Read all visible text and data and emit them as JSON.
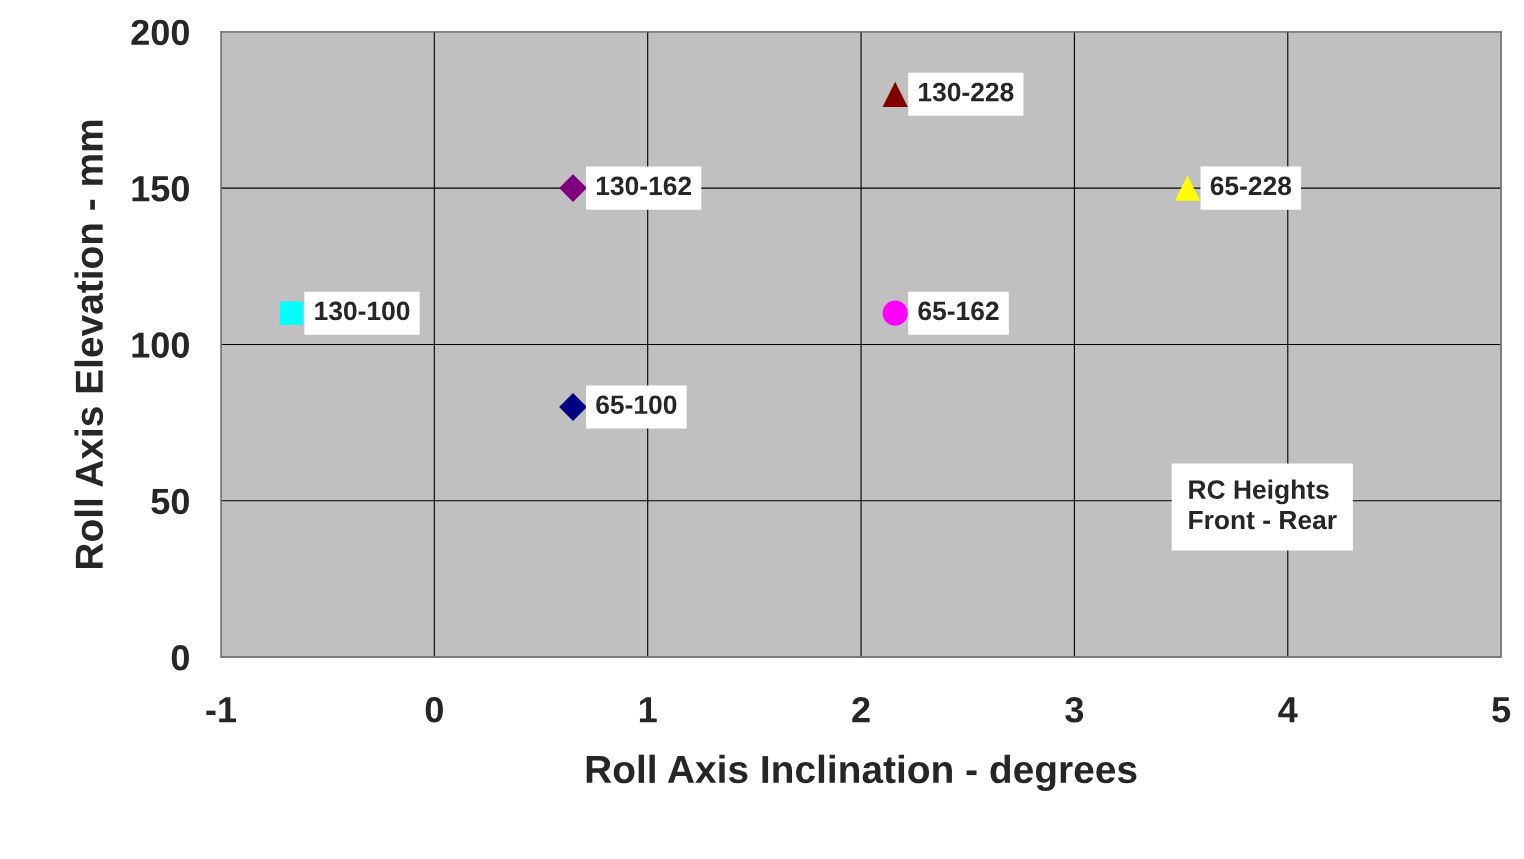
{
  "chart_data": {
    "type": "scatter",
    "xlabel": "Roll Axis Inclination - degrees",
    "ylabel": "Roll Axis Elevation - mm",
    "series": [
      {
        "name": "130-100",
        "color": "#00ffff",
        "marker": "square",
        "x": [
          -0.67
        ],
        "values": [
          110
        ]
      },
      {
        "name": "130-162",
        "color": "#800080",
        "marker": "diamond",
        "x": [
          0.65
        ],
        "values": [
          150
        ]
      },
      {
        "name": "65-100",
        "color": "#000080",
        "marker": "diamond",
        "x": [
          0.65
        ],
        "values": [
          80
        ]
      },
      {
        "name": "130-228",
        "color": "#800000",
        "marker": "triangle",
        "x": [
          2.16
        ],
        "values": [
          180
        ]
      },
      {
        "name": "65-162",
        "color": "#ff00ff",
        "marker": "circle",
        "x": [
          2.16
        ],
        "values": [
          110
        ]
      },
      {
        "name": "65-228",
        "color": "#ffff00",
        "marker": "triangle",
        "x": [
          3.53
        ],
        "values": [
          150
        ]
      }
    ],
    "annotations": [
      "RC Heights\nFront - Rear"
    ],
    "xlim": [
      -1,
      5
    ],
    "xticks": [
      -1,
      0,
      1,
      2,
      3,
      4,
      5
    ],
    "ylim": [
      0,
      200
    ],
    "yticks": [
      0,
      50,
      100,
      150,
      200
    ],
    "grid": true,
    "legend": false
  }
}
